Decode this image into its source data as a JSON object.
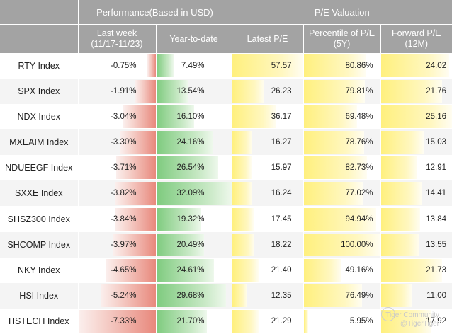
{
  "chart_data": {
    "type": "table",
    "header_groups": {
      "performance": "Performance(Based in USD)",
      "pe_valuation": "P/E Valuation"
    },
    "columns": {
      "last_week": [
        "Last week",
        "(11/17-11/23)"
      ],
      "ytd": [
        "Year-to-date"
      ],
      "latest_pe": [
        "Latest P/E"
      ],
      "pct_pe": [
        "Percentile of P/E",
        "(5Y)"
      ],
      "fwd_pe": [
        "Forward P/E",
        "(12M)"
      ]
    },
    "rows": [
      {
        "name": "RTY Index",
        "last_week": -0.75,
        "ytd": 7.49,
        "latest_pe": 57.57,
        "pct_pe": 80.86,
        "fwd_pe": 24.02
      },
      {
        "name": "SPX Index",
        "last_week": -1.91,
        "ytd": 13.54,
        "latest_pe": 26.23,
        "pct_pe": 79.81,
        "fwd_pe": 21.76
      },
      {
        "name": "NDX Index",
        "last_week": -3.04,
        "ytd": 16.1,
        "latest_pe": 36.17,
        "pct_pe": 69.48,
        "fwd_pe": 25.16
      },
      {
        "name": "MXEAIM Index",
        "last_week": -3.3,
        "ytd": 24.16,
        "latest_pe": 16.27,
        "pct_pe": 78.76,
        "fwd_pe": 15.03
      },
      {
        "name": "NDUEEGF Index",
        "last_week": -3.71,
        "ytd": 26.54,
        "latest_pe": 15.97,
        "pct_pe": 82.73,
        "fwd_pe": 12.91
      },
      {
        "name": "SXXE Index",
        "last_week": -3.82,
        "ytd": 32.09,
        "latest_pe": 16.24,
        "pct_pe": 77.02,
        "fwd_pe": 14.41
      },
      {
        "name": "SHSZ300 Index",
        "last_week": -3.84,
        "ytd": 19.32,
        "latest_pe": 17.45,
        "pct_pe": 94.94,
        "fwd_pe": 13.84
      },
      {
        "name": "SHCOMP Index",
        "last_week": -3.97,
        "ytd": 20.49,
        "latest_pe": 18.22,
        "pct_pe": 100.0,
        "fwd_pe": 13.55
      },
      {
        "name": "NKY Index",
        "last_week": -4.65,
        "ytd": 24.61,
        "latest_pe": 21.4,
        "pct_pe": 49.16,
        "fwd_pe": 21.73
      },
      {
        "name": "HSI Index",
        "last_week": -5.24,
        "ytd": 29.68,
        "latest_pe": 12.35,
        "pct_pe": 76.49,
        "fwd_pe": 11.0
      },
      {
        "name": "HSTECH Index",
        "last_week": -7.33,
        "ytd": 21.7,
        "latest_pe": 21.29,
        "pct_pe": 5.95,
        "fwd_pe": 17.92
      }
    ],
    "format": {
      "last_week": "percent",
      "ytd": "percent",
      "latest_pe": "number",
      "pct_pe": "percent",
      "fwd_pe": "number"
    },
    "bar_max": {
      "last_week": 7.33,
      "ytd": 32.09,
      "latest_pe": 57.57,
      "pct_pe": 100,
      "fwd_pe": 25.16
    }
  },
  "watermark": {
    "brand": "Tiger Community",
    "handle": "@TigerTiger"
  },
  "colors": {
    "header_bg": "#a3a3a3",
    "negative_bar": "#e8887c",
    "positive_bar": "#7fcb7f",
    "pe_bar": "#fff07e"
  }
}
